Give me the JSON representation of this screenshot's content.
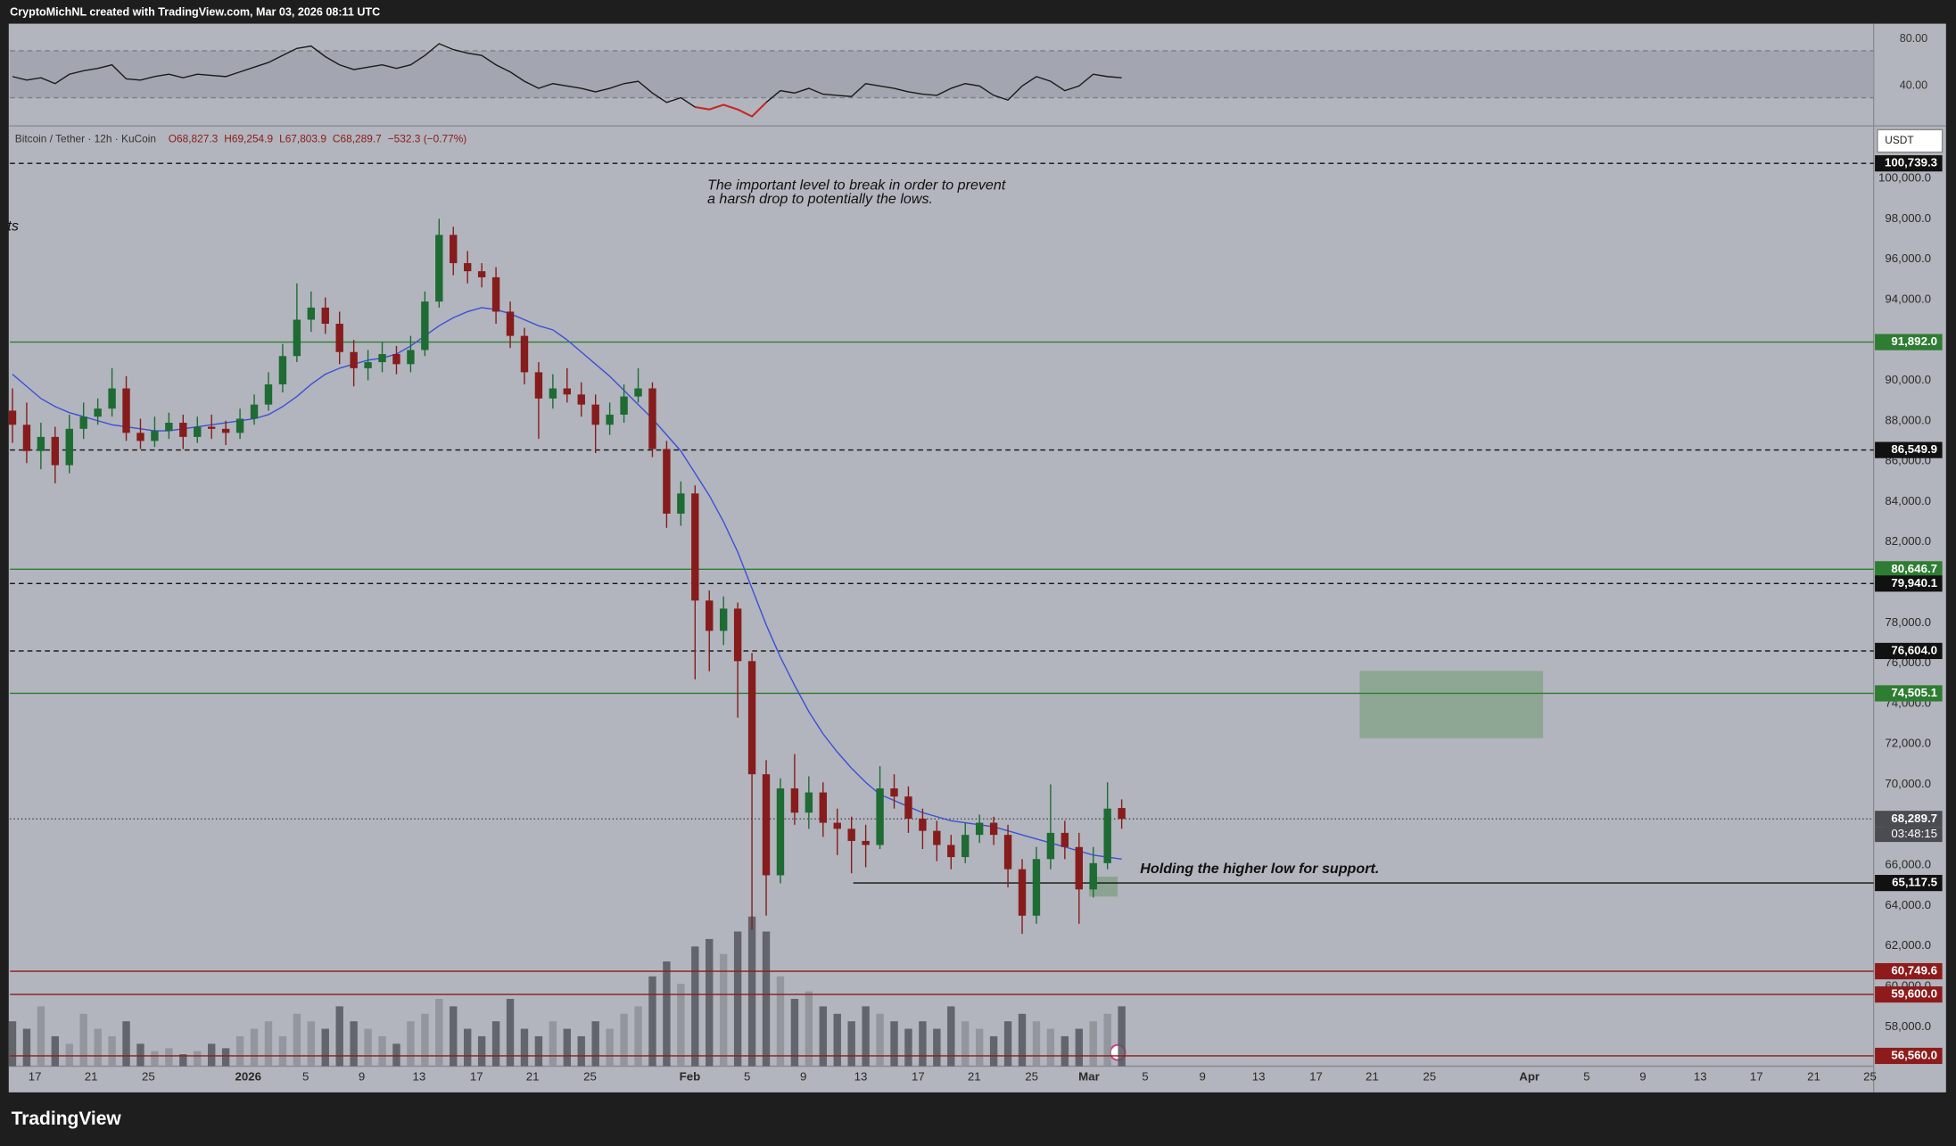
{
  "header": "CryptoMichNL created with TradingView.com, Mar 03, 2026 08:11 UTC",
  "brand": "TradingView",
  "chart_data": {
    "type": "candlestick",
    "title": "Bitcoin / Tether · 12h · KuCoin",
    "legend_values": [
      "O68,827.3",
      "H69,254.9",
      "L67,803.9",
      "C68,289.7",
      "−532.3 (−0.77%)"
    ],
    "currency": "USDT",
    "countdown": "03:48:15",
    "annotations": [
      "The important level to break in order to prevent",
      "a harsh drop to potentially the lows.",
      "Holding the higher low for support.",
      "ts"
    ],
    "up_color": "#1e6b34",
    "down_color": "#861c1c",
    "ylim": [
      56050,
      102530
    ],
    "yticks": [
      {
        "value": 58000,
        "label": "58,000.0"
      },
      {
        "value": 60000,
        "label": "60,000.0"
      },
      {
        "value": 62000,
        "label": "62,000.0"
      },
      {
        "value": 64000,
        "label": "64,000.0"
      },
      {
        "value": 66000,
        "label": "66,000.0"
      },
      {
        "value": 68000,
        "label": "68,000.0"
      },
      {
        "value": 70000,
        "label": "70,000.0"
      },
      {
        "value": 72000,
        "label": "72,000.0"
      },
      {
        "value": 74000,
        "label": "74,000.0"
      },
      {
        "value": 76000,
        "label": "76,000.0"
      },
      {
        "value": 78000,
        "label": "78,000.0"
      },
      {
        "value": 80000,
        "label": "80,000.0"
      },
      {
        "value": 82000,
        "label": "82,000.0"
      },
      {
        "value": 84000,
        "label": "84,000.0"
      },
      {
        "value": 86000,
        "label": "86,000.0"
      },
      {
        "value": 88000,
        "label": "88,000.0"
      },
      {
        "value": 90000,
        "label": "90,000.0"
      },
      {
        "value": 92000,
        "label": "92,000.0"
      },
      {
        "value": 94000,
        "label": "94,000.0"
      },
      {
        "value": 96000,
        "label": "96,000.0"
      },
      {
        "value": 98000,
        "label": "98,000.0"
      },
      {
        "value": 100000,
        "label": "100,000.0"
      }
    ],
    "x_labels": [
      "17",
      "21",
      "25",
      "2026",
      "5",
      "9",
      "13",
      "17",
      "21",
      "25",
      "Feb",
      "5",
      "9",
      "13",
      "17",
      "21",
      "25",
      "Mar",
      "5",
      "9",
      "13",
      "17",
      "21",
      "25",
      "Apr",
      "5",
      "9",
      "13",
      "17",
      "21",
      "25"
    ],
    "price_lines": [
      {
        "value": 100739.3,
        "label": "100,739.3",
        "style": "dashed",
        "color": "#111111"
      },
      {
        "value": 91892.0,
        "label": "91,892.0",
        "style": "solid",
        "color": "#2e7d32"
      },
      {
        "value": 86549.9,
        "label": "86,549.9",
        "style": "dashed",
        "color": "#111111"
      },
      {
        "value": 80646.7,
        "label": "80,646.7",
        "style": "solid",
        "color": "#2e7d32"
      },
      {
        "value": 79940.1,
        "label": "79,940.1",
        "style": "dashed",
        "color": "#111111"
      },
      {
        "value": 76604.0,
        "label": "76,604.0",
        "style": "dashed",
        "color": "#111111"
      },
      {
        "value": 74505.1,
        "label": "74,505.1",
        "style": "solid",
        "color": "#2e7d32"
      },
      {
        "value": 68289.7,
        "label": "68,289.7",
        "style": "dotted",
        "color": "#4a4c52"
      },
      {
        "value": 65117.5,
        "label": "65,117.5",
        "style": "solid",
        "color": "#111111"
      },
      {
        "value": 60749.6,
        "label": "60,749.6",
        "style": "solid",
        "color": "#8e1b1b"
      },
      {
        "value": 59600.0,
        "label": "59,600.0",
        "style": "solid",
        "color": "#8e1b1b"
      },
      {
        "value": 56560.0,
        "label": "56,560.0",
        "style": "solid",
        "color": "#8e1b1b"
      }
    ],
    "ohlc": [
      [
        88500,
        89600,
        86900,
        87800
      ],
      [
        87800,
        88900,
        85900,
        86500
      ],
      [
        86500,
        87900,
        85600,
        87200
      ],
      [
        87200,
        87700,
        84900,
        85800
      ],
      [
        85800,
        88300,
        85400,
        87600
      ],
      [
        87600,
        88900,
        87100,
        88200
      ],
      [
        88200,
        89100,
        87800,
        88600
      ],
      [
        88600,
        90600,
        88200,
        89600
      ],
      [
        89600,
        90200,
        87000,
        87400
      ],
      [
        87400,
        88100,
        86600,
        87000
      ],
      [
        87000,
        88200,
        86700,
        87500
      ],
      [
        87500,
        88400,
        87100,
        87900
      ],
      [
        87900,
        88300,
        86600,
        87200
      ],
      [
        87200,
        88200,
        86900,
        87700
      ],
      [
        87700,
        88300,
        87100,
        87600
      ],
      [
        87600,
        88000,
        86800,
        87400
      ],
      [
        87400,
        88600,
        87100,
        88100
      ],
      [
        88100,
        89300,
        87800,
        88800
      ],
      [
        88800,
        90400,
        88500,
        89800
      ],
      [
        89800,
        91800,
        89400,
        91200
      ],
      [
        91200,
        94800,
        90900,
        93000
      ],
      [
        93000,
        94400,
        92400,
        93600
      ],
      [
        93600,
        94100,
        92300,
        92800
      ],
      [
        92800,
        93400,
        90800,
        91400
      ],
      [
        91400,
        92000,
        89700,
        90600
      ],
      [
        90600,
        91500,
        90000,
        90900
      ],
      [
        90900,
        91900,
        90400,
        91300
      ],
      [
        91300,
        91700,
        90300,
        90800
      ],
      [
        90800,
        92200,
        90400,
        91500
      ],
      [
        91500,
        94400,
        91200,
        93900
      ],
      [
        93900,
        98000,
        93600,
        97200
      ],
      [
        97200,
        97600,
        95200,
        95800
      ],
      [
        95800,
        96400,
        94800,
        95400
      ],
      [
        95400,
        95800,
        94600,
        95100
      ],
      [
        95100,
        95600,
        92800,
        93400
      ],
      [
        93400,
        93900,
        91600,
        92200
      ],
      [
        92200,
        92600,
        89800,
        90400
      ],
      [
        90400,
        90900,
        87100,
        89100
      ],
      [
        89100,
        90300,
        88600,
        89600
      ],
      [
        89600,
        90600,
        88900,
        89300
      ],
      [
        89300,
        89900,
        88200,
        88800
      ],
      [
        88800,
        89300,
        86400,
        87800
      ],
      [
        87800,
        88900,
        87300,
        88300
      ],
      [
        88300,
        89800,
        87900,
        89200
      ],
      [
        89200,
        90600,
        88900,
        89600
      ],
      [
        89600,
        89900,
        86200,
        86600
      ],
      [
        86600,
        87000,
        82700,
        83400
      ],
      [
        83400,
        85000,
        82800,
        84400
      ],
      [
        84400,
        84800,
        75200,
        79100
      ],
      [
        79100,
        79600,
        75600,
        77600
      ],
      [
        77600,
        79300,
        76900,
        78700
      ],
      [
        78700,
        79000,
        73300,
        76100
      ],
      [
        76100,
        76500,
        62800,
        70500
      ],
      [
        70500,
        71200,
        63500,
        65500
      ],
      [
        65500,
        70300,
        65100,
        69800
      ],
      [
        69800,
        71500,
        68000,
        68600
      ],
      [
        68600,
        70400,
        67800,
        69600
      ],
      [
        69600,
        70100,
        67400,
        68100
      ],
      [
        68100,
        68800,
        66500,
        67800
      ],
      [
        67800,
        68400,
        65600,
        67200
      ],
      [
        67200,
        68000,
        65900,
        67000
      ],
      [
        67000,
        70900,
        66800,
        69800
      ],
      [
        69800,
        70500,
        68800,
        69400
      ],
      [
        69400,
        69900,
        67600,
        68300
      ],
      [
        68300,
        68800,
        66800,
        67700
      ],
      [
        67700,
        68200,
        66200,
        67000
      ],
      [
        67000,
        67500,
        65800,
        66400
      ],
      [
        66400,
        68100,
        66100,
        67500
      ],
      [
        67500,
        68500,
        67100,
        68100
      ],
      [
        68100,
        68400,
        67000,
        67500
      ],
      [
        67500,
        68000,
        64900,
        65800
      ],
      [
        65800,
        66300,
        62600,
        63500
      ],
      [
        63500,
        66900,
        63100,
        66300
      ],
      [
        66300,
        70000,
        65800,
        67600
      ],
      [
        67600,
        68200,
        66300,
        66900
      ],
      [
        66900,
        67600,
        63100,
        64800
      ],
      [
        64800,
        66900,
        64400,
        66100
      ],
      [
        66100,
        70100,
        65800,
        68800
      ],
      [
        68827.3,
        69254.9,
        67803.9,
        68289.7
      ]
    ],
    "ma": {
      "color": "#3d4fd6",
      "values": [
        90300,
        89700,
        89100,
        88700,
        88400,
        88200,
        88000,
        87800,
        87700,
        87600,
        87500,
        87500,
        87600,
        87700,
        87800,
        87900,
        88000,
        88100,
        88300,
        88700,
        89200,
        89800,
        90300,
        90600,
        90800,
        91000,
        91100,
        91300,
        91700,
        92200,
        92700,
        93100,
        93400,
        93600,
        93500,
        93300,
        93000,
        92700,
        92500,
        92000,
        91400,
        90800,
        90200,
        89500,
        88800,
        88100,
        87300,
        86500,
        85400,
        84300,
        83000,
        81500,
        79700,
        77900,
        76300,
        74900,
        73600,
        72500,
        71600,
        70800,
        70100,
        69500,
        69200,
        68900,
        68600,
        68400,
        68200,
        68100,
        68000,
        67900,
        67700,
        67500,
        67300,
        67100,
        66900,
        66700,
        66500,
        66400,
        66300
      ]
    },
    "volume": {
      "up_color": "#8d9098",
      "down_color": "#55575e",
      "lim": [
        0,
        100
      ],
      "values": [
        30,
        25,
        40,
        20,
        15,
        35,
        25,
        20,
        30,
        15,
        10,
        12,
        8,
        10,
        15,
        12,
        20,
        25,
        30,
        20,
        35,
        30,
        25,
        40,
        30,
        25,
        20,
        15,
        30,
        35,
        45,
        40,
        25,
        20,
        30,
        45,
        25,
        20,
        30,
        25,
        20,
        30,
        25,
        35,
        40,
        60,
        70,
        55,
        80,
        85,
        75,
        90,
        100,
        90,
        60,
        45,
        50,
        40,
        35,
        30,
        40,
        35,
        30,
        25,
        30,
        25,
        40,
        30,
        25,
        20,
        30,
        35,
        30,
        25,
        20,
        25,
        30,
        35,
        40
      ]
    },
    "rsi": {
      "color": "#1a1a1a",
      "oversold_color": "#c62828",
      "ylim": [
        7,
        92
      ],
      "band": [
        30,
        70
      ],
      "yticks": [
        {
          "value": 80,
          "label": "80.00"
        },
        {
          "value": 40,
          "label": "40.00"
        }
      ],
      "values": [
        48,
        45,
        47,
        42,
        50,
        53,
        55,
        58,
        46,
        45,
        48,
        50,
        47,
        50,
        49,
        48,
        52,
        56,
        60,
        66,
        72,
        74,
        65,
        58,
        54,
        56,
        58,
        55,
        58,
        66,
        76,
        71,
        68,
        66,
        58,
        52,
        44,
        38,
        42,
        40,
        38,
        35,
        38,
        42,
        44,
        34,
        26,
        30,
        22,
        20,
        24,
        20,
        14,
        26,
        36,
        34,
        38,
        33,
        32,
        31,
        42,
        40,
        38,
        35,
        33,
        32,
        38,
        42,
        40,
        32,
        28,
        40,
        48,
        44,
        36,
        40,
        50,
        48,
        47
      ]
    }
  }
}
